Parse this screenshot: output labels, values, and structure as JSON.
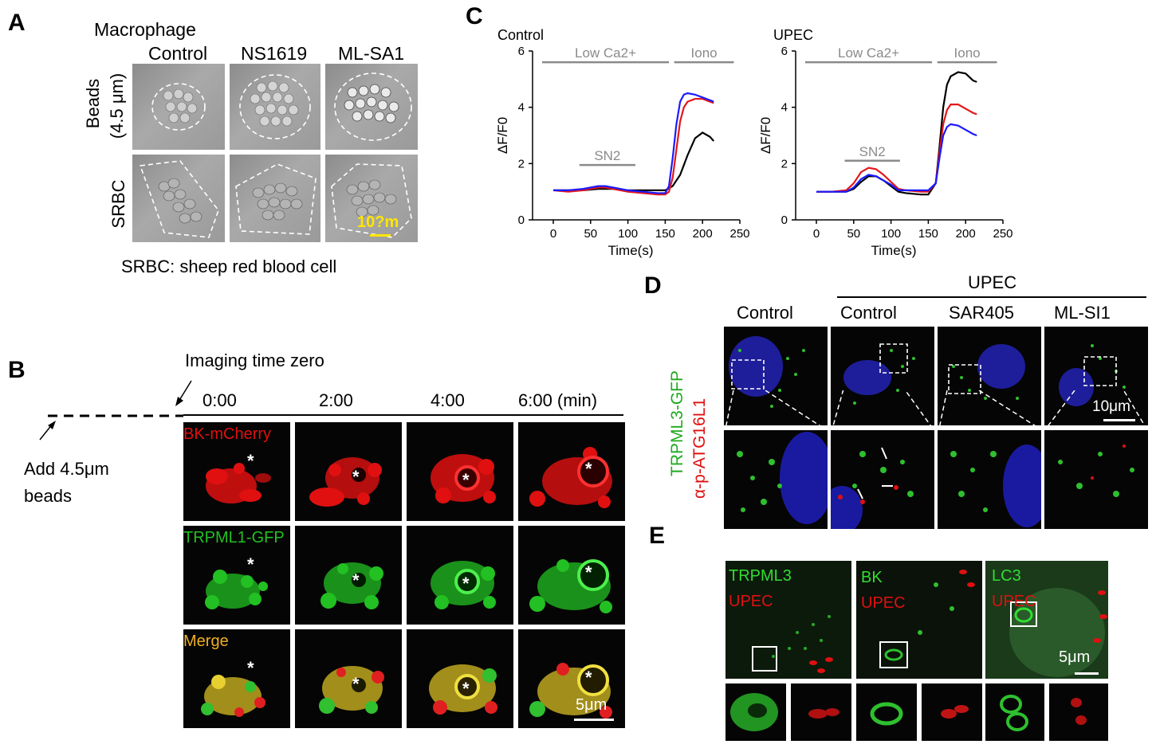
{
  "panelA": {
    "letter": "A",
    "header": "Macrophage",
    "columns": [
      "Control",
      "NS1619",
      "ML-SA1"
    ],
    "rows": [
      "Beads (4.5 μm)",
      "SRBC"
    ],
    "row_beads_line1": "Beads",
    "row_beads_line2": "(4.5 μm)",
    "scalebar": "10?m",
    "caption": "SRBC: sheep red blood cell"
  },
  "panelB": {
    "letter": "B",
    "imaging_label": "Imaging time zero",
    "add_label_line1": "Add 4.5μm",
    "add_label_line2": "beads",
    "times": [
      "0:00",
      "2:00",
      "4:00",
      "6:00 (min)"
    ],
    "channels": [
      "BK-mCherry",
      "TRPML1-GFP",
      "Merge"
    ],
    "asterisk": "*",
    "scalebar": "5μm"
  },
  "panelC": {
    "letter": "C",
    "left_title": "Control",
    "right_title": "UPEC",
    "y_label": "ΔF/F0",
    "x_label": "Time(s)",
    "low_ca": "Low Ca",
    "low_ca_sup": "2+",
    "iono": "Iono",
    "sn2": "SN2"
  },
  "panelD": {
    "letter": "D",
    "upec_header": "UPEC",
    "columns": [
      "Control",
      "Control",
      "SAR405",
      "ML-SI1"
    ],
    "side_green": "TRPML3-GFP",
    "side_red": "α-p-ATG16L1",
    "scalebar": "10μm"
  },
  "panelE": {
    "letter": "E",
    "panels": [
      {
        "green": "TRPML3",
        "red": "UPEC"
      },
      {
        "green": "BK",
        "red": "UPEC"
      },
      {
        "green": "LC3",
        "red": "UPEC"
      }
    ],
    "scalebar": "5μm"
  },
  "chart_data": [
    {
      "type": "line",
      "title": "Control",
      "xlabel": "Time(s)",
      "ylabel": "ΔF/F0",
      "xlim": [
        0,
        250
      ],
      "ylim": [
        0,
        6
      ],
      "xticks": [
        0,
        50,
        100,
        150,
        200,
        250
      ],
      "yticks": [
        0,
        2,
        4,
        6
      ],
      "annotations": [
        {
          "label": "Low Ca2+",
          "x": [
            -15,
            155
          ],
          "y": 5.6
        },
        {
          "label": "Iono",
          "x": [
            162,
            242
          ],
          "y": 5.6
        },
        {
          "label": "SN2",
          "x": [
            35,
            110
          ],
          "y": 1.95
        }
      ],
      "series": [
        {
          "color": "#000000",
          "x": [
            0,
            20,
            40,
            60,
            80,
            100,
            120,
            140,
            150,
            160,
            170,
            180,
            190,
            200,
            210,
            215
          ],
          "values": [
            1.05,
            1.05,
            1.05,
            1.1,
            1.1,
            1.05,
            1.05,
            1.05,
            1.05,
            1.2,
            1.6,
            2.3,
            2.9,
            3.1,
            2.95,
            2.8
          ]
        },
        {
          "color": "#e4161b",
          "x": [
            0,
            20,
            40,
            50,
            60,
            70,
            80,
            100,
            120,
            140,
            150,
            155,
            160,
            165,
            170,
            175,
            180,
            190,
            200,
            210,
            215
          ],
          "values": [
            1.05,
            1.0,
            1.05,
            1.1,
            1.15,
            1.15,
            1.1,
            1.0,
            0.95,
            0.9,
            0.9,
            1.0,
            1.5,
            2.5,
            3.5,
            4.0,
            4.2,
            4.3,
            4.3,
            4.2,
            4.15
          ]
        },
        {
          "color": "#1a1aff",
          "x": [
            0,
            20,
            40,
            50,
            60,
            70,
            80,
            100,
            120,
            140,
            150,
            155,
            160,
            165,
            170,
            175,
            180,
            190,
            200,
            210,
            215
          ],
          "values": [
            1.05,
            1.05,
            1.1,
            1.15,
            1.2,
            1.2,
            1.15,
            1.05,
            1.0,
            0.95,
            0.95,
            1.2,
            2.2,
            3.4,
            4.2,
            4.45,
            4.5,
            4.45,
            4.35,
            4.25,
            4.2
          ]
        }
      ]
    },
    {
      "type": "line",
      "title": "UPEC",
      "xlabel": "Time(s)",
      "ylabel": "ΔF/F0",
      "xlim": [
        0,
        250
      ],
      "ylim": [
        0,
        6
      ],
      "xticks": [
        0,
        50,
        100,
        150,
        200,
        250
      ],
      "yticks": [
        0,
        2,
        4,
        6
      ],
      "annotations": [
        {
          "label": "Low Ca2+",
          "x": [
            -15,
            155
          ],
          "y": 5.6
        },
        {
          "label": "Iono",
          "x": [
            162,
            242
          ],
          "y": 5.6
        },
        {
          "label": "SN2",
          "x": [
            38,
            112
          ],
          "y": 2.1
        }
      ],
      "series": [
        {
          "color": "#000000",
          "x": [
            0,
            20,
            40,
            50,
            60,
            70,
            80,
            90,
            100,
            110,
            120,
            140,
            150,
            160,
            165,
            170,
            175,
            180,
            190,
            200,
            210,
            215
          ],
          "values": [
            1.0,
            1.0,
            1.0,
            1.1,
            1.35,
            1.55,
            1.55,
            1.4,
            1.2,
            1.0,
            0.95,
            0.9,
            0.9,
            1.3,
            2.6,
            4.0,
            4.8,
            5.1,
            5.25,
            5.2,
            4.95,
            4.9
          ]
        },
        {
          "color": "#e4161b",
          "x": [
            0,
            20,
            40,
            50,
            60,
            70,
            80,
            90,
            100,
            110,
            120,
            140,
            150,
            160,
            165,
            170,
            175,
            180,
            190,
            200,
            210,
            215
          ],
          "values": [
            1.0,
            1.0,
            1.05,
            1.3,
            1.7,
            1.85,
            1.8,
            1.6,
            1.35,
            1.1,
            1.05,
            1.0,
            1.0,
            1.3,
            2.4,
            3.4,
            3.9,
            4.1,
            4.1,
            3.95,
            3.8,
            3.75
          ]
        },
        {
          "color": "#1a1aff",
          "x": [
            0,
            20,
            40,
            50,
            60,
            70,
            80,
            90,
            100,
            110,
            120,
            140,
            150,
            160,
            165,
            170,
            175,
            180,
            190,
            200,
            210,
            215
          ],
          "values": [
            1.0,
            1.0,
            1.0,
            1.15,
            1.45,
            1.6,
            1.55,
            1.4,
            1.25,
            1.05,
            1.05,
            1.05,
            1.05,
            1.3,
            2.2,
            3.0,
            3.3,
            3.4,
            3.35,
            3.2,
            3.05,
            3.0
          ]
        }
      ]
    }
  ]
}
